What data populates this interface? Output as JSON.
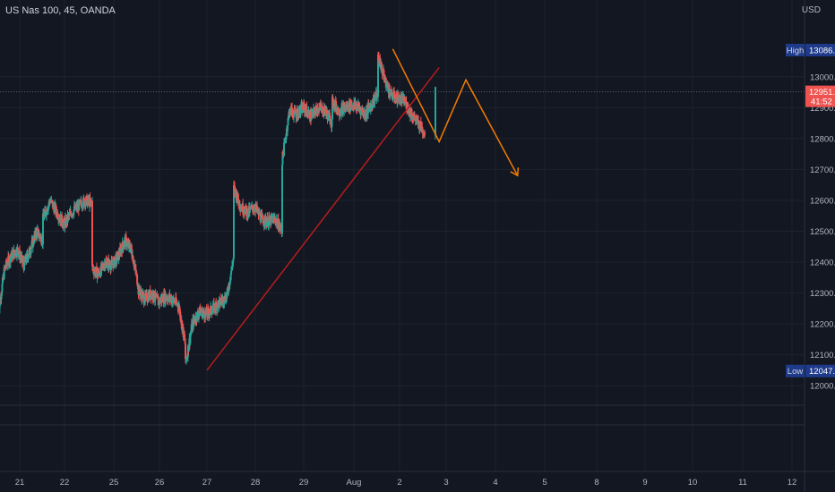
{
  "header": {
    "title": "US Nas 100, 45, OANDA",
    "currency": "USD"
  },
  "colors": {
    "bg": "#131722",
    "grid": "#1e222d",
    "up": "#26a69a",
    "down": "#ef5350",
    "trendline": "#b71c1c",
    "projection": "#f57c00",
    "label_bg": "#1e3a8a",
    "price_tag": "#ef5350"
  },
  "price_tags": {
    "high": {
      "label": "High",
      "value": "13086.4"
    },
    "low": {
      "label": "Low",
      "value": "12047.6"
    },
    "current": {
      "value": "12951.2",
      "countdown": "41:52"
    }
  },
  "chart_data": {
    "type": "candlestick",
    "symbol": "US Nas 100",
    "interval": "45",
    "source": "OANDA",
    "ylim": [
      11960,
      13150
    ],
    "y_ticks": [
      12000,
      12100,
      12200,
      12300,
      12400,
      12500,
      12600,
      12700,
      12800,
      12900,
      13000
    ],
    "y_tick_labels": [
      "12000.0",
      "12100.0",
      "12200.0",
      "12300.0",
      "12400.0",
      "12500.0",
      "12600.0",
      "12700.0",
      "12800.0",
      "12900.0",
      "13000.0"
    ],
    "x_tick_labels": [
      "21",
      "22",
      "25",
      "26",
      "27",
      "28",
      "29",
      "Aug",
      "2",
      "3",
      "4",
      "5",
      "8",
      "9",
      "10",
      "11",
      "12"
    ],
    "x_tick_days": [
      0,
      1,
      2,
      3,
      4,
      5,
      6,
      7,
      8,
      9,
      10,
      11,
      12,
      13,
      14,
      15,
      16
    ],
    "day_closes": [
      [
        12230,
        12380,
        12420,
        12440,
        12390,
        12440,
        12500,
        12470
      ],
      [
        12540,
        12600,
        12560,
        12520,
        12560,
        12580,
        12600,
        12590
      ],
      [
        12380,
        12360,
        12400,
        12390,
        12420,
        12470,
        12440,
        12330
      ],
      [
        12310,
        12280,
        12300,
        12270,
        12290,
        12280,
        12260,
        12130
      ],
      [
        12070,
        12200,
        12240,
        12230,
        12250,
        12270,
        12290,
        12420
      ],
      [
        12640,
        12580,
        12560,
        12580,
        12540,
        12530,
        12540,
        12500
      ],
      [
        12730,
        12890,
        12880,
        12900,
        12870,
        12900,
        12890,
        12850
      ],
      [
        12920,
        12890,
        12900,
        12910,
        12900,
        12880,
        12910,
        12950
      ],
      [
        13070,
        12990,
        12940,
        12930,
        12920,
        12880,
        12850,
        12820
      ],
      [
        12951
      ]
    ],
    "annotations": {
      "trendline": {
        "from": [
          4.0,
          12050
        ],
        "to": [
          8.85,
          13030
        ]
      },
      "projection": [
        [
          7.85,
          13090
        ],
        [
          8.85,
          12790
        ],
        [
          9.4,
          12990
        ],
        [
          10.45,
          12680
        ]
      ]
    },
    "high": 13086.4,
    "low": 12047.6,
    "last": 12951.2
  }
}
